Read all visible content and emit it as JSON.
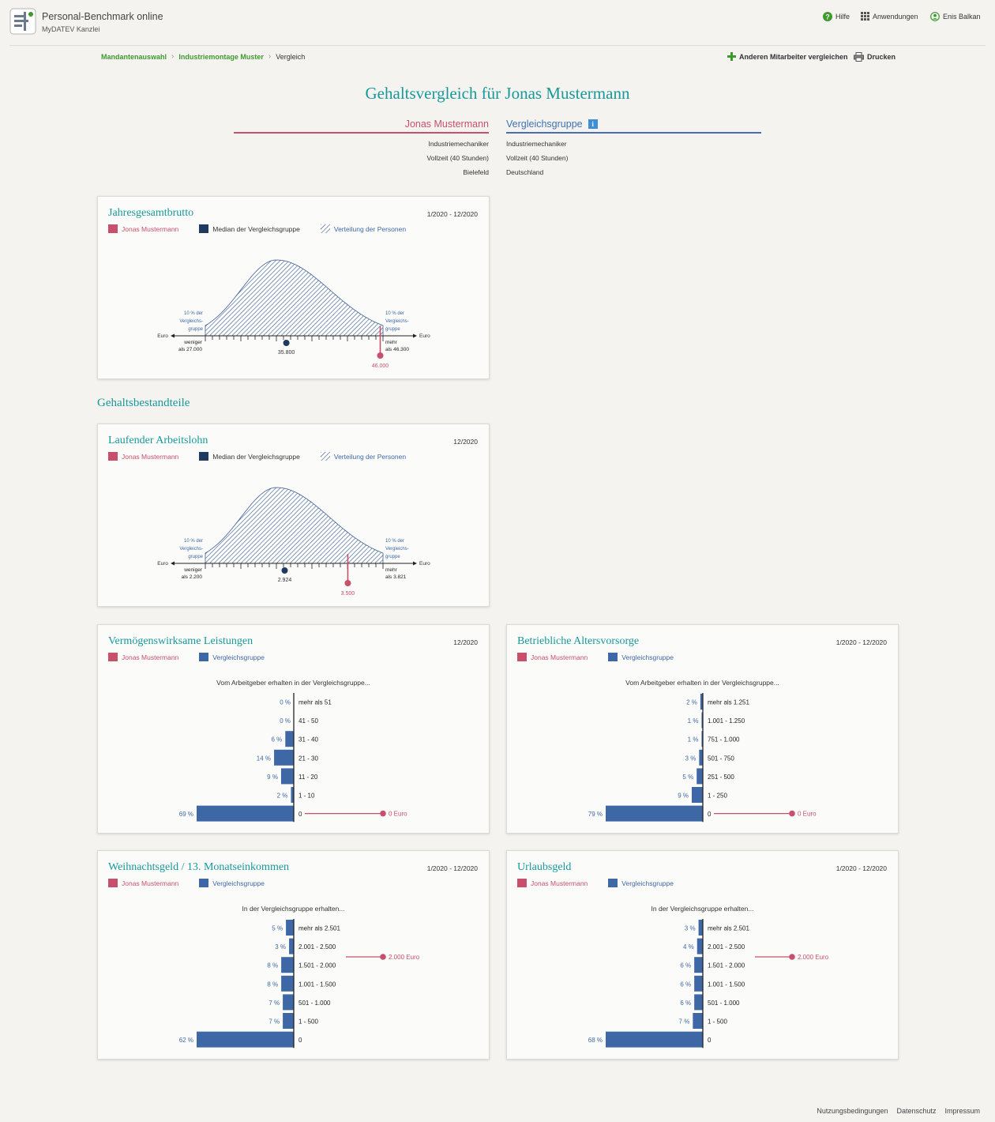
{
  "header": {
    "app_title": "Personal-Benchmark online",
    "app_subtitle": "MyDATEV Kanzlei",
    "help_label": "Hilfe",
    "apps_label": "Anwendungen",
    "user_label": "Enis Balkan",
    "icons": [
      "help-icon",
      "apps-grid-icon",
      "user-icon"
    ]
  },
  "breadcrumb": [
    "Mandantenauswahl",
    "Industriemontage Muster",
    "Vergleich"
  ],
  "toolbar": {
    "compare_label": "Anderen Mitarbeiter vergleichen",
    "print_label": "Drucken"
  },
  "title": "Gehaltsvergleich für Jonas Mustermann",
  "compare": {
    "left": {
      "name": "Jonas Mustermann",
      "attrs": [
        "Industriemechaniker",
        "Vollzeit (40 Stunden)",
        "Bielefeld"
      ]
    },
    "right": {
      "name": "Vergleichsgruppe",
      "info": "i",
      "attrs": [
        "Industriemechaniker",
        "Vollzeit (40 Stunden)",
        "Deutschland"
      ]
    }
  },
  "legend": {
    "person": "Jonas Mustermann",
    "median": "Median der Vergleichsgruppe",
    "distribution": "Verteilung der Personen",
    "group": "Vergleichsgruppe"
  },
  "colors": {
    "accent": "#17999a",
    "person": "#c8506c",
    "group": "#3e68a5",
    "median": "#1e3a5f"
  },
  "section_title": "Gehaltsbestandteile",
  "dist_charts": [
    {
      "title": "Jahresgesamtbrutto",
      "period": "1/2020 - 12/2020",
      "left_note": [
        "10 % der",
        "Vergleichs-",
        "gruppe"
      ],
      "right_note": [
        "10 % der",
        "Vergleichs-",
        "gruppe"
      ],
      "axis_unit": "Euro",
      "low_label": [
        "weniger",
        "als 27.000"
      ],
      "high_label": [
        "mehr",
        "als 46.300"
      ],
      "low": 27000,
      "high": 46300,
      "median": 35800,
      "median_label": "35.800",
      "person": 46000,
      "person_label": "46.000"
    },
    {
      "title": "Laufender Arbeitslohn",
      "period": "12/2020",
      "left_note": [
        "10 % der",
        "Vergleichs-",
        "gruppe"
      ],
      "right_note": [
        "10 % der",
        "Vergleichs-",
        "gruppe"
      ],
      "axis_unit": "Euro",
      "low_label": [
        "weniger",
        "als 2.200"
      ],
      "high_label": [
        "mehr",
        "als 3.821"
      ],
      "low": 2200,
      "high": 3821,
      "median": 2924,
      "median_label": "2.924",
      "person": 3500,
      "person_label": "3.500"
    }
  ],
  "bar_charts": [
    {
      "title": "Vermögenswirksame Leistungen",
      "period": "12/2020",
      "heading": "Vom Arbeitgeber erhalten in der Vergleichsgruppe...",
      "categories": [
        "mehr als 51",
        "41 - 50",
        "31 - 40",
        "21 - 30",
        "11 - 20",
        "1 - 10",
        "0"
      ],
      "values": [
        0,
        0,
        6,
        14,
        9,
        2,
        69
      ],
      "value_labels": [
        "0 %",
        "0 %",
        "6 %",
        "14 %",
        "9 %",
        "2 %",
        "69 %"
      ],
      "person_row": 6,
      "person_label": "0 Euro"
    },
    {
      "title": "Betriebliche Altersvorsorge",
      "period": "1/2020 - 12/2020",
      "heading": "Vom Arbeitgeber erhalten in der Vergleichsgruppe...",
      "categories": [
        "mehr als 1.251",
        "1.001 - 1.250",
        "751 - 1.000",
        "501 - 750",
        "251 - 500",
        "1 - 250",
        "0"
      ],
      "values": [
        2,
        1,
        1,
        3,
        5,
        9,
        79
      ],
      "value_labels": [
        "2 %",
        "1 %",
        "1 %",
        "3 %",
        "5 %",
        "9 %",
        "79 %"
      ],
      "person_row": 6,
      "person_label": "0 Euro"
    },
    {
      "title": "Weihnachtsgeld / 13. Monatseinkommen",
      "period": "1/2020 - 12/2020",
      "heading": "In der Vergleichsgruppe erhalten...",
      "categories": [
        "mehr als 2.501",
        "2.001 - 2.500",
        "1.501 - 2.000",
        "1.001 - 1.500",
        "501 - 1.000",
        "1 - 500",
        "0"
      ],
      "values": [
        5,
        3,
        8,
        8,
        7,
        7,
        62
      ],
      "value_labels": [
        "5 %",
        "3 %",
        "8 %",
        "8 %",
        "7 %",
        "7 %",
        "62 %"
      ],
      "person_row": 1.5,
      "person_label": "2.000 Euro"
    },
    {
      "title": "Urlaubsgeld",
      "period": "1/2020 - 12/2020",
      "heading": "In der Vergleichsgruppe erhalten...",
      "categories": [
        "mehr als 2.501",
        "2.001 - 2.500",
        "1.501 - 2.000",
        "1.001 - 1.500",
        "501 - 1.000",
        "1 - 500",
        "0"
      ],
      "values": [
        3,
        4,
        6,
        6,
        6,
        7,
        68
      ],
      "value_labels": [
        "3 %",
        "4 %",
        "6 %",
        "6 %",
        "6 %",
        "7 %",
        "68 %"
      ],
      "person_row": 1.5,
      "person_label": "2.000 Euro"
    }
  ],
  "footer": [
    "Nutzungsbedingungen",
    "Datenschutz",
    "Impressum"
  ]
}
